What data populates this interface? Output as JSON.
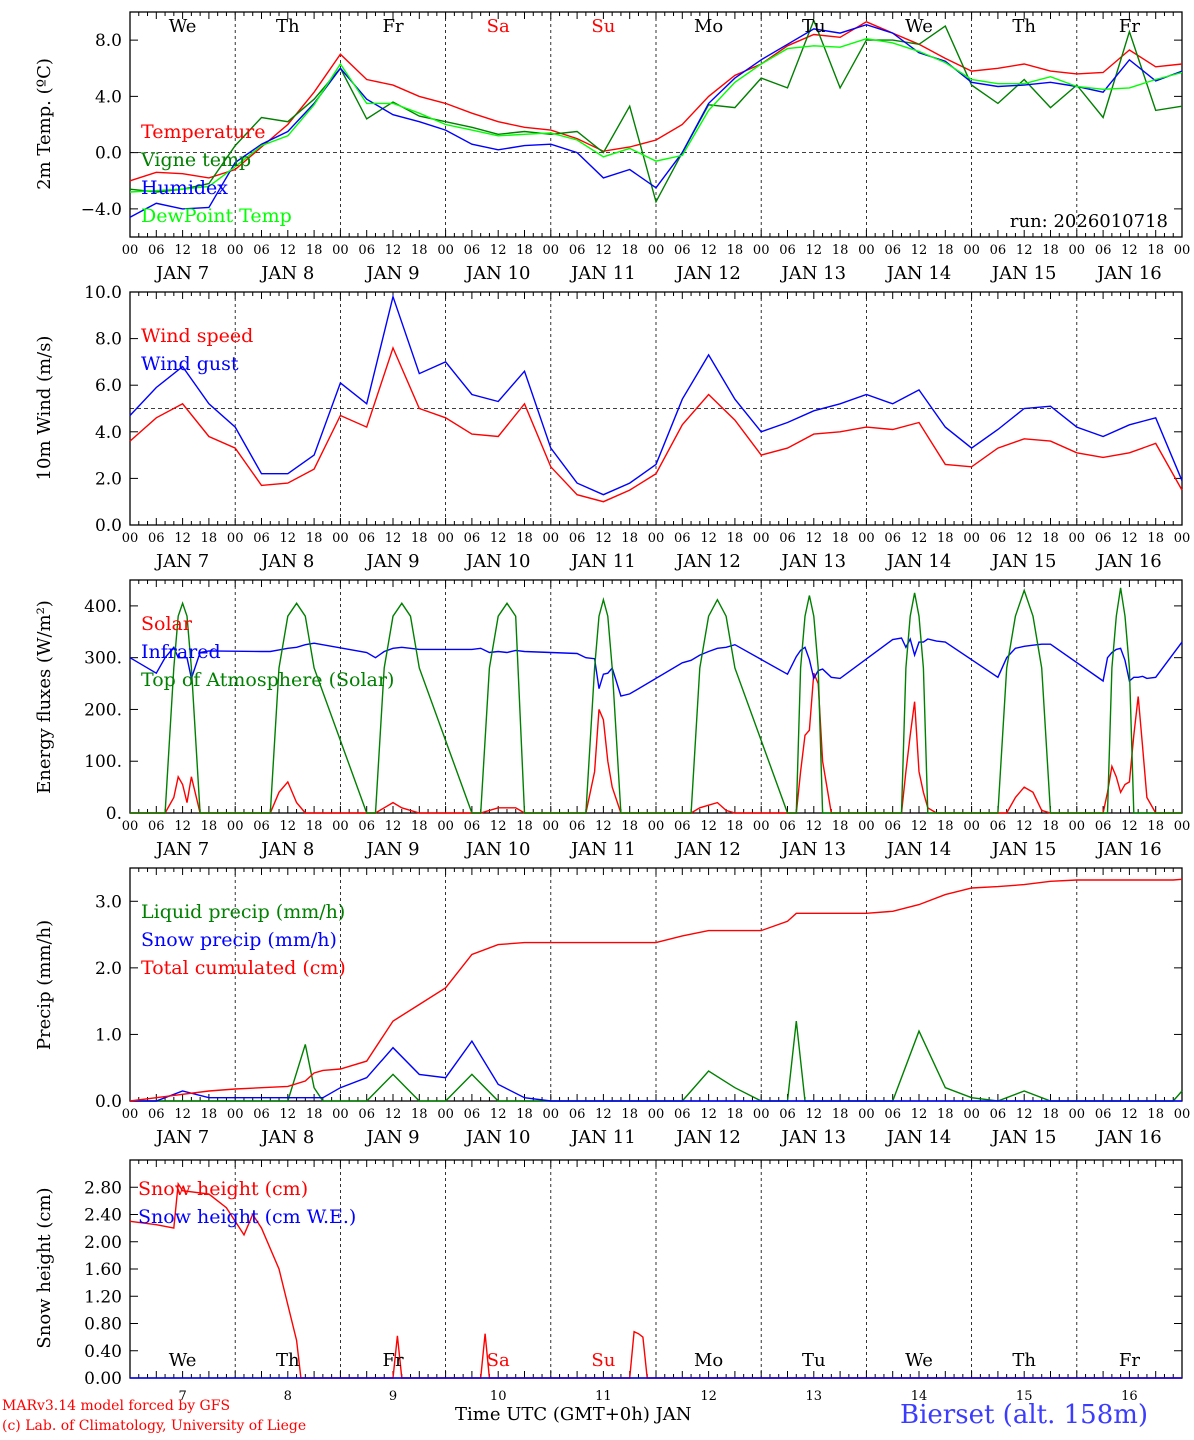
{
  "footer": {
    "credit_line1": "MARv3.14 model forced by GFS",
    "credit_line2": "(c) Lab. of Climatology, University of Liege",
    "x_title": "Time UTC (GMT+0h) JAN",
    "station": "Bierset (alt. 158m)"
  },
  "chart_data": [
    {
      "type": "line",
      "ylabel": "2m Temp. (ºC)",
      "ylim": [
        -6.0,
        10.0
      ],
      "yticks": [
        -4.0,
        0.0,
        4.0,
        8.0
      ],
      "ytick_labels": [
        "−4.0",
        "0.0",
        "4.0",
        "8.0"
      ],
      "dashed_reference": 0.0,
      "weekday_labels": [
        "We",
        "Th",
        "Fr",
        "Sa",
        "Su",
        "Mo",
        "Tu",
        "We",
        "Th",
        "Fr"
      ],
      "annotation": "run: 2026010718",
      "x_hours": [
        0,
        6,
        12,
        18,
        24,
        30,
        36,
        42,
        48,
        54,
        60,
        66,
        72,
        78,
        84,
        90,
        96,
        102,
        108,
        114,
        120,
        126,
        132,
        138,
        144,
        150,
        156,
        162,
        168,
        174,
        180,
        186,
        192,
        198,
        204,
        210,
        216,
        222,
        228,
        234,
        240
      ],
      "series": [
        {
          "name": "Temperature",
          "color": "#ff0000",
          "values": [
            -2.0,
            -1.4,
            -1.5,
            -1.8,
            -1.2,
            0.4,
            2.0,
            4.3,
            7.0,
            5.2,
            4.8,
            4.0,
            3.5,
            2.8,
            2.2,
            1.8,
            1.6,
            1.0,
            0.1,
            0.4,
            0.9,
            2.0,
            4.0,
            5.5,
            6.3,
            7.6,
            8.4,
            8.2,
            9.3,
            8.5,
            7.7,
            6.7,
            5.8,
            6.0,
            6.3,
            5.8,
            5.6,
            5.7,
            7.3,
            6.1,
            6.3
          ]
        },
        {
          "name": "Vigne temp",
          "color": "#008000",
          "values": [
            -2.6,
            -2.8,
            -2.6,
            -2.2,
            0.5,
            2.5,
            2.2,
            3.8,
            6.0,
            2.4,
            3.6,
            2.6,
            2.2,
            1.8,
            1.3,
            1.5,
            1.3,
            1.5,
            0.0,
            3.3,
            -3.5,
            0.0,
            3.4,
            3.2,
            5.3,
            4.6,
            9.4,
            4.6,
            8.0,
            8.0,
            7.7,
            9.0,
            4.8,
            3.5,
            5.2,
            3.2,
            4.8,
            2.5,
            8.6,
            3.0,
            3.3
          ]
        },
        {
          "name": "Humidex",
          "color": "#0000ff",
          "values": [
            -4.6,
            -3.6,
            -4.0,
            -3.9,
            -0.7,
            0.6,
            1.5,
            3.5,
            6.0,
            3.8,
            2.7,
            2.2,
            1.6,
            0.6,
            0.2,
            0.5,
            0.6,
            0.0,
            -1.8,
            -1.2,
            -2.5,
            0.0,
            3.5,
            5.3,
            6.6,
            7.7,
            8.8,
            8.5,
            9.1,
            8.5,
            7.1,
            6.5,
            5.0,
            4.7,
            4.8,
            5.0,
            4.7,
            4.3,
            6.6,
            5.1,
            5.8
          ]
        },
        {
          "name": "DewPoint Temp",
          "color": "#00ff00",
          "values": [
            -2.8,
            -2.7,
            -2.6,
            -2.4,
            -1.0,
            0.5,
            1.2,
            3.4,
            6.3,
            3.5,
            3.5,
            2.8,
            2.0,
            1.6,
            1.2,
            1.3,
            1.4,
            0.9,
            -0.3,
            0.3,
            -0.6,
            -0.2,
            3.0,
            5.0,
            6.3,
            7.4,
            7.6,
            7.5,
            8.1,
            7.8,
            7.2,
            6.4,
            5.2,
            4.9,
            4.9,
            5.4,
            4.7,
            4.5,
            4.6,
            5.2,
            5.7
          ]
        }
      ]
    },
    {
      "type": "line",
      "ylabel": "10m Wind (m/s)",
      "ylim": [
        0.0,
        10.0
      ],
      "yticks": [
        0.0,
        2.0,
        4.0,
        6.0,
        8.0,
        10.0
      ],
      "ytick_labels": [
        "0.0",
        "2.0",
        "4.0",
        "6.0",
        "8.0",
        "10.0"
      ],
      "dashed_reference": 5.0,
      "x_hours": [
        0,
        6,
        12,
        18,
        24,
        30,
        36,
        42,
        48,
        54,
        60,
        66,
        72,
        78,
        84,
        90,
        96,
        102,
        108,
        114,
        120,
        126,
        132,
        138,
        144,
        150,
        156,
        162,
        168,
        174,
        180,
        186,
        192,
        198,
        204,
        210,
        216,
        222,
        228,
        234,
        240
      ],
      "series": [
        {
          "name": "Wind speed",
          "color": "#ff0000",
          "values": [
            3.6,
            4.6,
            5.2,
            3.8,
            3.3,
            1.7,
            1.8,
            2.4,
            4.7,
            4.2,
            7.6,
            5.0,
            4.6,
            3.9,
            3.8,
            5.2,
            2.5,
            1.3,
            1.0,
            1.5,
            2.2,
            4.3,
            5.6,
            4.5,
            3.0,
            3.3,
            3.9,
            4.0,
            4.2,
            4.1,
            4.4,
            2.6,
            2.5,
            3.3,
            3.7,
            3.6,
            3.1,
            2.9,
            3.1,
            3.5,
            1.5
          ]
        },
        {
          "name": "Wind gust",
          "color": "#0000ff",
          "values": [
            4.7,
            5.9,
            6.8,
            5.2,
            4.2,
            2.2,
            2.2,
            3.0,
            6.1,
            5.2,
            9.8,
            6.5,
            7.0,
            5.6,
            5.3,
            6.6,
            3.3,
            1.8,
            1.3,
            1.8,
            2.6,
            5.4,
            7.3,
            5.4,
            4.0,
            4.4,
            4.9,
            5.2,
            5.6,
            5.2,
            5.8,
            4.2,
            3.3,
            4.1,
            5.0,
            5.1,
            4.2,
            3.8,
            4.3,
            4.6,
            1.9
          ]
        }
      ]
    },
    {
      "type": "line",
      "ylabel": "Energy fluxes (W/m²)",
      "ylim": [
        0,
        450
      ],
      "yticks": [
        0,
        100,
        200,
        300,
        400
      ],
      "ytick_labels": [
        "0.",
        "100.",
        "200.",
        "300.",
        "400."
      ],
      "x_hours": [
        0,
        6,
        8,
        10,
        11,
        12,
        13,
        14,
        16,
        18,
        30,
        32,
        34,
        36,
        38,
        40,
        42,
        54,
        56,
        58,
        60,
        62,
        64,
        66,
        78,
        80,
        82,
        84,
        86,
        88,
        90,
        102,
        104,
        106,
        107,
        108,
        109,
        110,
        112,
        114,
        126,
        128,
        130,
        132,
        134,
        136,
        138,
        150,
        152,
        153,
        154,
        155,
        156,
        157,
        158,
        160,
        162,
        174,
        176,
        177,
        178,
        179,
        180,
        181,
        182,
        184,
        186,
        198,
        200,
        202,
        204,
        206,
        208,
        210,
        222,
        223,
        224,
        225,
        226,
        227,
        228,
        229,
        230,
        231,
        232,
        234,
        240
      ],
      "series": [
        {
          "name": "Solar",
          "color": "#ff0000",
          "values": [
            0,
            0,
            0,
            30,
            70,
            55,
            20,
            70,
            0,
            0,
            0,
            0,
            40,
            60,
            20,
            0,
            0,
            0,
            0,
            10,
            20,
            10,
            5,
            0,
            0,
            0,
            5,
            10,
            10,
            10,
            0,
            0,
            0,
            80,
            200,
            180,
            100,
            50,
            0,
            0,
            0,
            0,
            10,
            15,
            20,
            5,
            0,
            0,
            0,
            80,
            150,
            160,
            270,
            250,
            100,
            0,
            0,
            0,
            0,
            80,
            150,
            215,
            80,
            40,
            10,
            0,
            0,
            0,
            0,
            30,
            50,
            40,
            5,
            0,
            0,
            40,
            90,
            70,
            40,
            55,
            60,
            150,
            225,
            130,
            30,
            0,
            0
          ]
        },
        {
          "name": "Infrared",
          "color": "#0000ff",
          "values": [
            300,
            270,
            300,
            320,
            300,
            300,
            300,
            260,
            310,
            313,
            312,
            312,
            315,
            318,
            320,
            325,
            328,
            310,
            300,
            312,
            318,
            320,
            318,
            316,
            316,
            318,
            310,
            312,
            310,
            314,
            312,
            308,
            300,
            298,
            240,
            268,
            270,
            280,
            226,
            230,
            290,
            295,
            305,
            312,
            318,
            320,
            325,
            268,
            302,
            314,
            320,
            296,
            260,
            275,
            278,
            262,
            260,
            335,
            338,
            320,
            336,
            305,
            330,
            330,
            336,
            332,
            330,
            262,
            300,
            318,
            322,
            324,
            326,
            326,
            255,
            300,
            310,
            316,
            318,
            295,
            255,
            262,
            262,
            264,
            260,
            262,
            330
          ]
        },
        {
          "name": "Top of Atmosphere (Solar)",
          "color": "#008000",
          "values": [
            0,
            0,
            0,
            280,
            380,
            405,
            380,
            280,
            0,
            0,
            0,
            0,
            280,
            380,
            405,
            380,
            280,
            0,
            0,
            280,
            380,
            405,
            380,
            280,
            0,
            0,
            280,
            380,
            405,
            380,
            0,
            0,
            0,
            280,
            380,
            412,
            380,
            280,
            0,
            0,
            0,
            0,
            280,
            380,
            412,
            380,
            280,
            0,
            0,
            280,
            380,
            420,
            380,
            280,
            0,
            0,
            0,
            0,
            0,
            280,
            380,
            425,
            380,
            280,
            0,
            0,
            0,
            0,
            280,
            380,
            430,
            380,
            280,
            0,
            0,
            0,
            280,
            380,
            435,
            380,
            280,
            0,
            0,
            0,
            0,
            0,
            0
          ]
        }
      ]
    },
    {
      "type": "line",
      "ylabel": "Precip (mm/h)",
      "ylim": [
        0.0,
        3.5
      ],
      "yticks": [
        0.0,
        1.0,
        2.0,
        3.0
      ],
      "ytick_labels": [
        "0.0",
        "1.0",
        "2.0",
        "3.0"
      ],
      "x_hours": [
        0,
        6,
        12,
        18,
        24,
        30,
        36,
        40,
        42,
        44,
        48,
        54,
        60,
        66,
        72,
        78,
        84,
        90,
        96,
        102,
        108,
        114,
        120,
        126,
        132,
        138,
        144,
        150,
        152,
        154,
        156,
        162,
        168,
        174,
        180,
        186,
        192,
        198,
        204,
        210,
        216,
        222,
        228,
        234,
        238,
        240
      ],
      "series": [
        {
          "name": "Liquid precip (mm/h)",
          "color": "#008000",
          "values": [
            0.0,
            0.0,
            0.0,
            0.0,
            0.0,
            0.0,
            0.0,
            0.85,
            0.2,
            0.0,
            0.0,
            0.0,
            0.4,
            0.0,
            0.0,
            0.4,
            0.0,
            0.0,
            0.0,
            0.0,
            0.0,
            0.0,
            0.0,
            0.0,
            0.45,
            0.2,
            0.0,
            0.0,
            1.2,
            0.0,
            0.0,
            0.0,
            0.0,
            0.0,
            1.05,
            0.2,
            0.05,
            0.0,
            0.15,
            0.0,
            0.0,
            0.0,
            0.0,
            0.0,
            0.0,
            0.15
          ]
        },
        {
          "name": "Snow precip (mm/h)",
          "color": "#0000ff",
          "values": [
            0.0,
            0.0,
            0.15,
            0.05,
            0.05,
            0.05,
            0.05,
            0.05,
            0.05,
            0.05,
            0.2,
            0.35,
            0.8,
            0.4,
            0.35,
            0.9,
            0.25,
            0.05,
            0.0,
            0.0,
            0.0,
            0.0,
            0.0,
            0.0,
            0.0,
            0.0,
            0.0,
            0.0,
            0.0,
            0.0,
            0.0,
            0.0,
            0.0,
            0.0,
            0.0,
            0.0,
            0.0,
            0.0,
            0.0,
            0.0,
            0.0,
            0.0,
            0.0,
            0.0,
            0.0,
            0.0
          ]
        },
        {
          "name": "Total cumulated (cm)",
          "color": "#ff0000",
          "values": [
            0.0,
            0.05,
            0.1,
            0.15,
            0.18,
            0.2,
            0.22,
            0.3,
            0.42,
            0.46,
            0.48,
            0.6,
            1.2,
            1.45,
            1.7,
            2.2,
            2.35,
            2.38,
            2.38,
            2.38,
            2.38,
            2.38,
            2.38,
            2.48,
            2.56,
            2.56,
            2.56,
            2.7,
            2.82,
            2.82,
            2.82,
            2.82,
            2.82,
            2.85,
            2.95,
            3.1,
            3.2,
            3.22,
            3.25,
            3.3,
            3.32,
            3.32,
            3.32,
            3.32,
            3.32,
            3.33
          ]
        }
      ]
    },
    {
      "type": "line",
      "ylabel": "Snow height (cm)",
      "ylim": [
        0.0,
        3.2
      ],
      "yticks": [
        0.0,
        0.4,
        0.8,
        1.2,
        1.6,
        2.0,
        2.4,
        2.8
      ],
      "ytick_labels": [
        "0.00",
        "0.40",
        "0.80",
        "1.20",
        "1.60",
        "2.00",
        "2.40",
        "2.80"
      ],
      "weekday_labels": [
        "We",
        "Th",
        "Fr",
        "Sa",
        "Su",
        "Mo",
        "Tu",
        "We",
        "Th",
        "Fr"
      ],
      "day_labels": [
        "7",
        "8",
        "9",
        "10",
        "11",
        "12",
        "13",
        "14",
        "15",
        "16"
      ],
      "x_hours": [
        0,
        6,
        10,
        11,
        12,
        18,
        22,
        24,
        26,
        28,
        30,
        34,
        38,
        39,
        40,
        41,
        60,
        61,
        62,
        80,
        81,
        82,
        114,
        115,
        116,
        117,
        118,
        240
      ],
      "series": [
        {
          "name": "Snow height (cm)",
          "color": "#ff0000",
          "values": [
            2.3,
            2.25,
            2.2,
            2.85,
            2.75,
            2.7,
            2.5,
            2.3,
            2.1,
            2.4,
            2.2,
            1.6,
            0.55,
            0.0,
            0.0,
            0.0,
            0.0,
            0.62,
            0.0,
            0.0,
            0.65,
            0.0,
            0.0,
            0.68,
            0.65,
            0.6,
            0.0,
            0.0
          ]
        },
        {
          "name": "Snow height (cm W.E.)",
          "color": "#0000ff",
          "values": [
            0,
            0,
            0,
            0,
            0,
            0,
            0,
            0,
            0,
            0,
            0,
            0,
            0,
            0,
            0,
            0,
            0,
            0,
            0,
            0,
            0,
            0,
            0,
            0,
            0,
            0,
            0,
            0
          ]
        }
      ]
    }
  ],
  "shared_x": {
    "hour_tick_labels": [
      "00",
      "06",
      "12",
      "18"
    ],
    "end_label": "00",
    "date_labels": [
      "JAN  7",
      "JAN  8",
      "JAN  9",
      "JAN 10",
      "JAN 11",
      "JAN 12",
      "JAN 13",
      "JAN 14",
      "JAN 15",
      "JAN 16"
    ],
    "weekend_labels": [
      "Sa",
      "Su"
    ],
    "weekend_color": "#ff0000"
  }
}
